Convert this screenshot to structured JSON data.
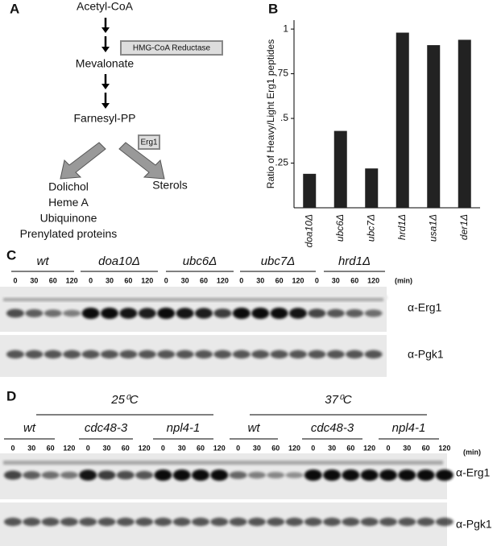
{
  "panel_labels": [
    "A",
    "B",
    "C",
    "D"
  ],
  "pathway": {
    "nodes": [
      "Acetyl-CoA",
      "Mevalonate",
      "Farnesyl-PP"
    ],
    "enzymes": [
      "HMG-CoA Reductase",
      "Erg1"
    ],
    "products_left": [
      "Dolichol",
      "Heme A",
      "Ubiquinone",
      "Prenylated proteins"
    ],
    "products_right": [
      "Sterols"
    ]
  },
  "chart_data": {
    "type": "bar",
    "ylabel": "Ratio of Heavy/Light Erg1 peptides",
    "categories": [
      "doa10Δ",
      "ubc6Δ",
      "ubc7Δ",
      "hrd1Δ",
      "usa1Δ",
      "der1Δ"
    ],
    "values": [
      0.19,
      0.43,
      0.22,
      0.98,
      0.91,
      0.94
    ],
    "color": "#222222",
    "ylim": [
      0,
      1.05
    ],
    "yticks": [
      {
        "value": 0.25,
        "label": ".25"
      },
      {
        "value": 0.5,
        "label": ".5"
      },
      {
        "value": 0.75,
        "label": ".75"
      },
      1
    ]
  },
  "blot_c": {
    "strains": [
      "wt",
      "doa10Δ",
      "ubc6Δ",
      "ubc7Δ",
      "hrd1Δ"
    ],
    "timepoints": [
      "0",
      "30",
      "60",
      "120"
    ],
    "unit": "(min)",
    "antibodies": [
      "α-Erg1",
      "α-Pgk1"
    ]
  },
  "blot_d": {
    "temperatures": [
      "25⁰C",
      "37⁰C"
    ],
    "strains": [
      "wt",
      "cdc48-3",
      "npl4-1",
      "wt",
      "cdc48-3",
      "npl4-1"
    ],
    "timepoints": [
      "0",
      "30",
      "60",
      "120"
    ],
    "unit": "(min)",
    "antibodies": [
      "α-Erg1",
      "α-Pgk1"
    ]
  }
}
